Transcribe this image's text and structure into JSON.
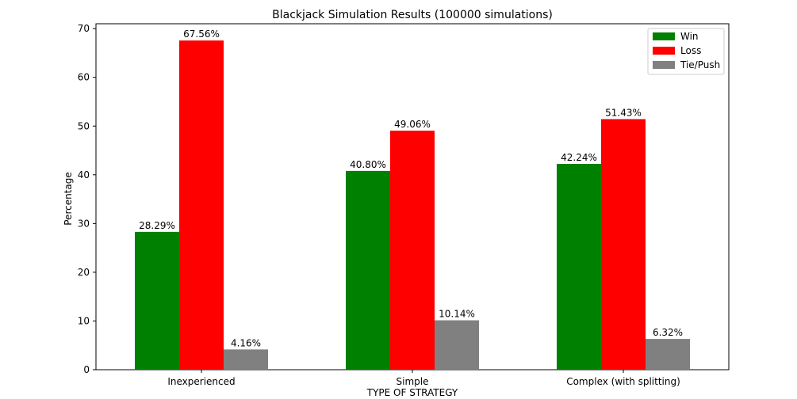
{
  "chart_data": {
    "type": "bar",
    "title": "Blackjack Simulation Results (100000 simulations)",
    "xlabel": "TYPE OF STRATEGY",
    "ylabel": "Percentage",
    "categories": [
      "Inexperienced",
      "Simple",
      "Complex (with splitting)"
    ],
    "series": [
      {
        "name": "Win",
        "color": "#008000",
        "values": [
          28.29,
          40.8,
          42.24
        ],
        "labels": [
          "28.29%",
          "40.80%",
          "42.24%"
        ]
      },
      {
        "name": "Loss",
        "color": "#ff0000",
        "values": [
          67.56,
          49.06,
          51.43
        ],
        "labels": [
          "67.56%",
          "49.06%",
          "51.43%"
        ]
      },
      {
        "name": "Tie/Push",
        "color": "#808080",
        "values": [
          4.16,
          10.14,
          6.32
        ],
        "labels": [
          "4.16%",
          "10.14%",
          "6.32%"
        ]
      }
    ],
    "ylim": [
      0,
      71
    ],
    "yticks": [
      0,
      10,
      20,
      30,
      40,
      50,
      60,
      70
    ],
    "grid": false,
    "legend_position": "top-right"
  }
}
